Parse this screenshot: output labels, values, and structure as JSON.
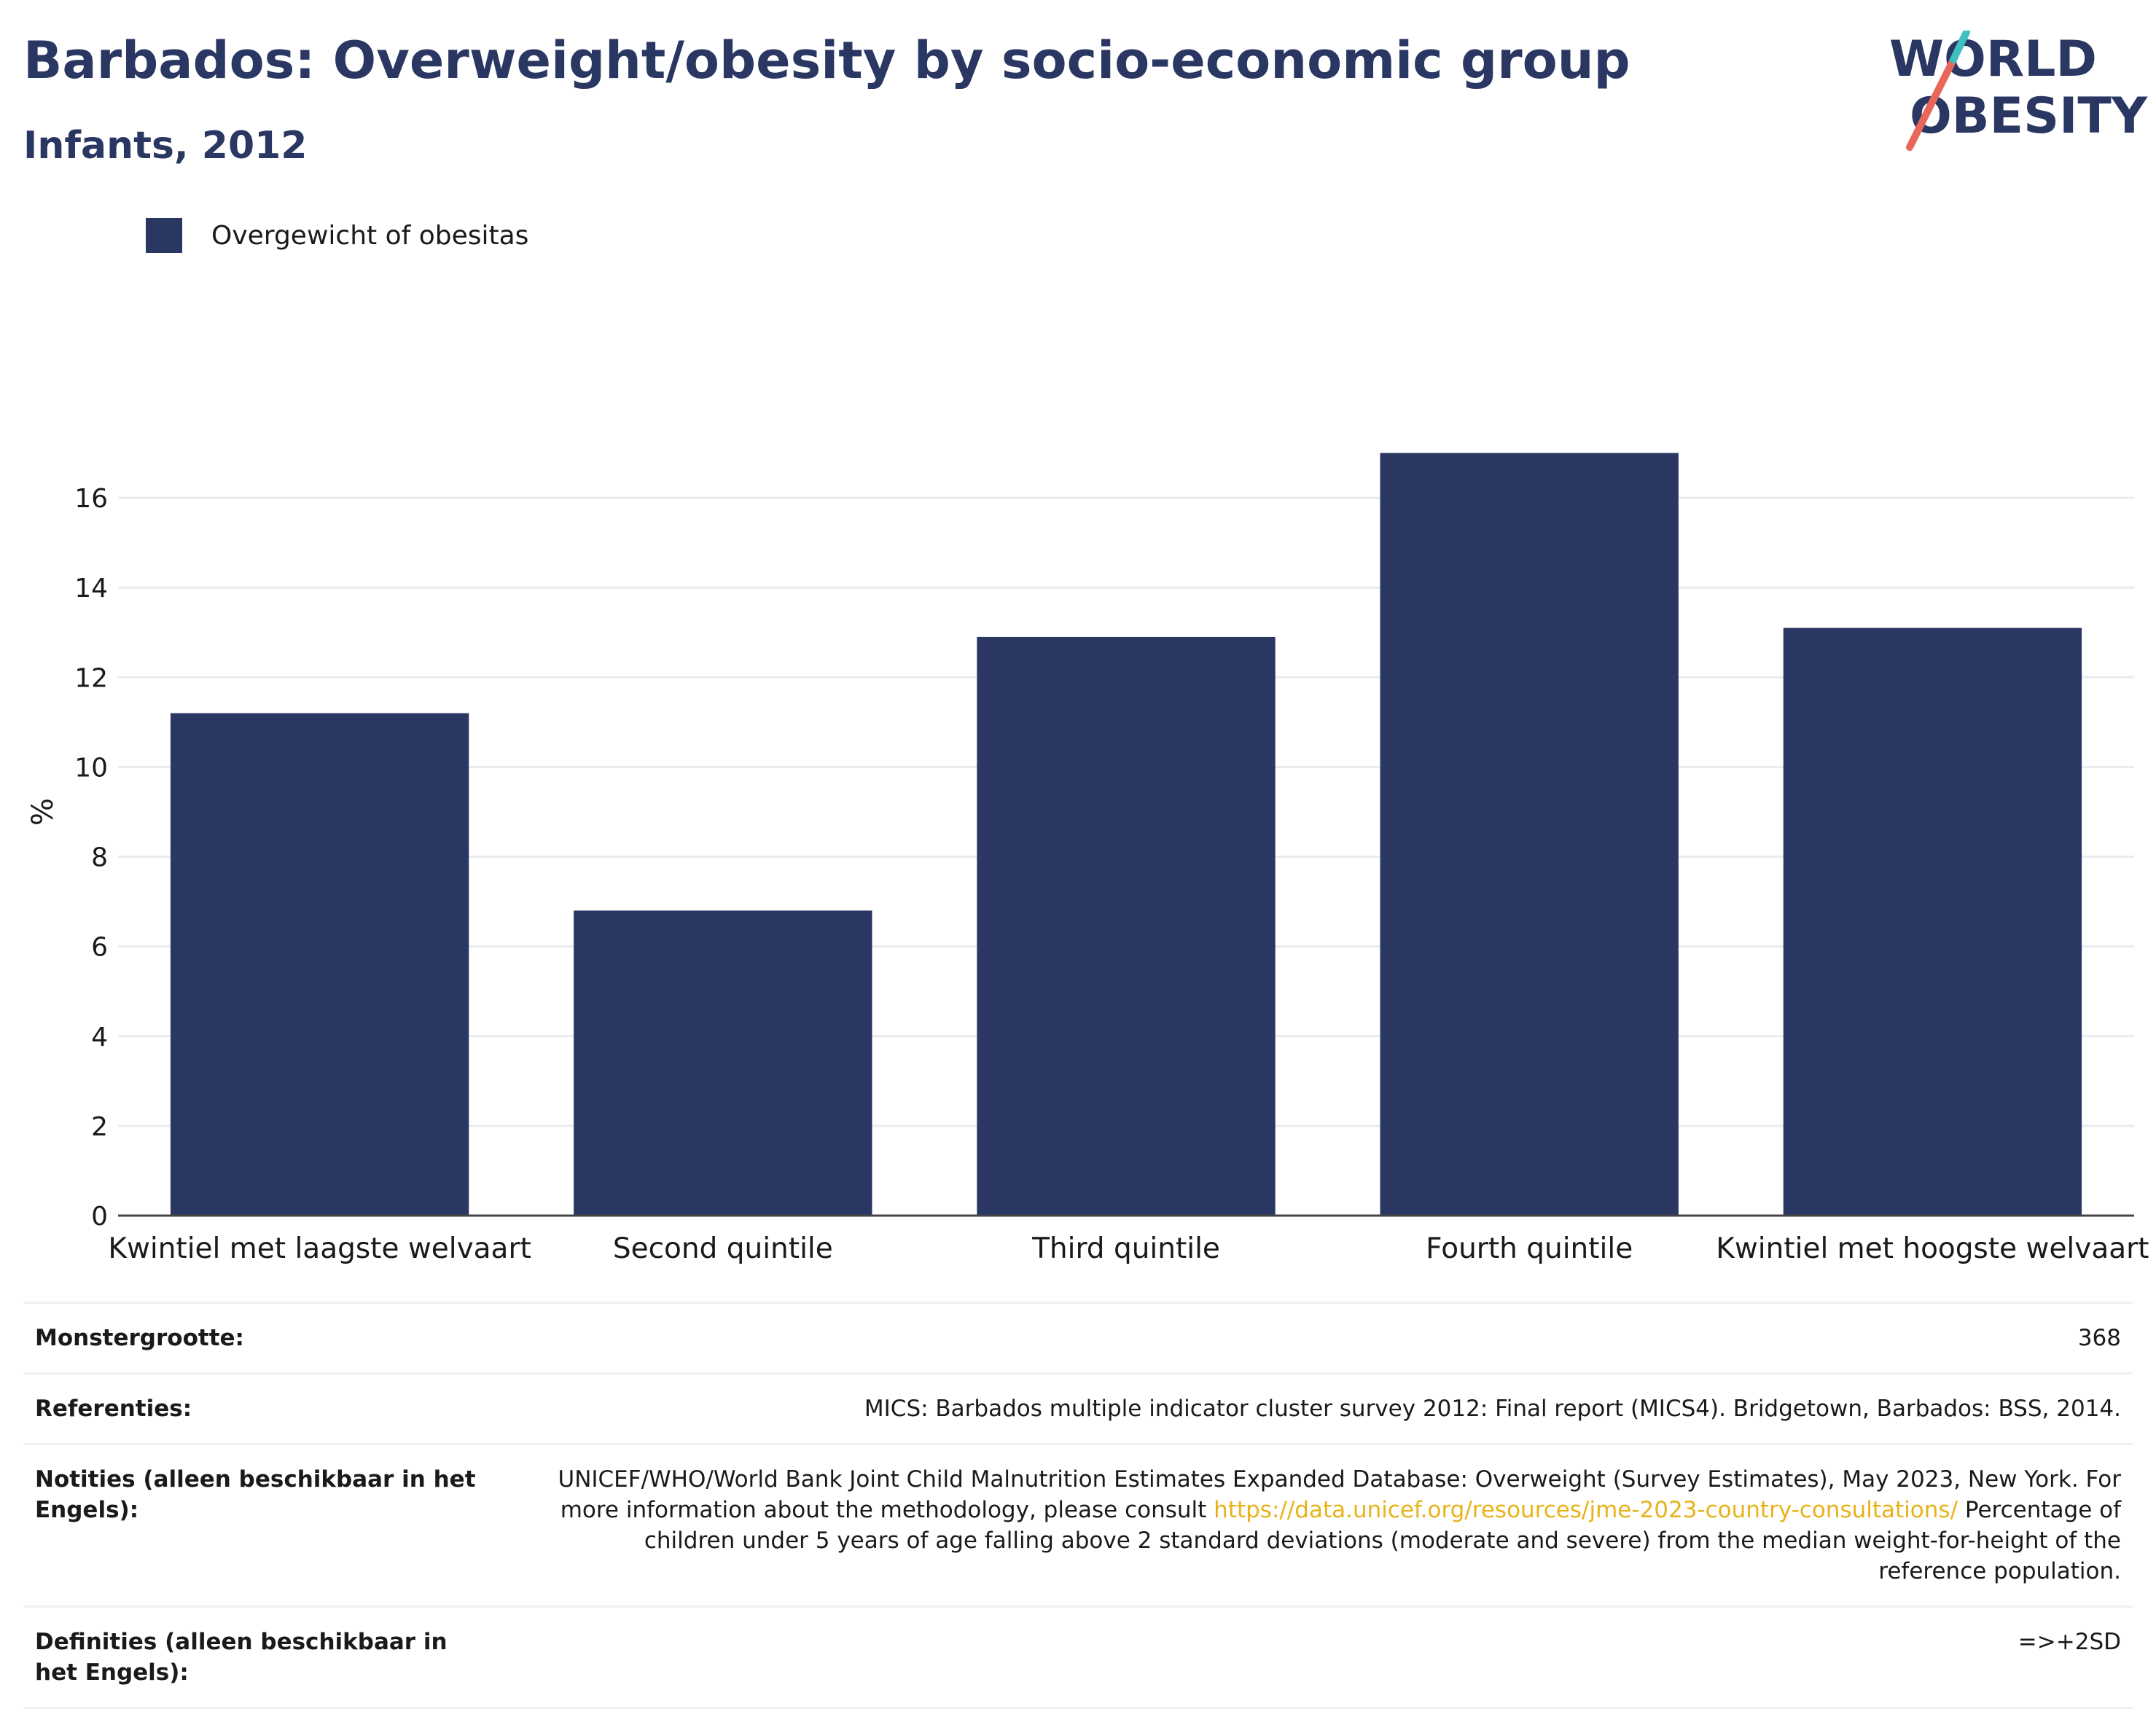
{
  "header": {
    "title": "Barbados: Overweight/obesity by socio-economic group",
    "subtitle": "Infants, 2012"
  },
  "logo": {
    "line1": "WORLD",
    "line2": "OBESITY",
    "slash_color": "#e8675a",
    "slash_accent": "#3fbfbf"
  },
  "legend": {
    "label": "Overgewicht of obesitas",
    "color": "#2b3763"
  },
  "chart_data": {
    "type": "bar",
    "categories": [
      "Kwintiel met laagste welvaart",
      "Second quintile",
      "Third quintile",
      "Fourth quintile",
      "Kwintiel met hoogste welvaart"
    ],
    "series": [
      {
        "name": "Overgewicht of obesitas",
        "values": [
          11.2,
          6.8,
          12.9,
          17.0,
          13.1
        ],
        "color": "#2b3763"
      }
    ],
    "ylabel": "%",
    "ylim": [
      0,
      18
    ],
    "yticks": [
      0,
      2,
      4,
      6,
      8,
      10,
      12,
      14,
      16
    ],
    "grid": true,
    "legend_position": "top-left"
  },
  "meta": {
    "sample_size": {
      "label": "Monstergrootte:",
      "value": "368"
    },
    "references": {
      "label": "Referenties:",
      "value": "MICS: Barbados multiple indicator cluster survey 2012: Final report (MICS4). Bridgetown, Barbados: BSS, 2014."
    },
    "notes": {
      "label": "Notities (alleen beschikbaar in het Engels):",
      "value_pre": "UNICEF/WHO/World Bank Joint Child Malnutrition Estimates Expanded Database: Overweight (Survey Estimates), May 2023, New York. For more information about the methodology, please consult ",
      "link": "https://data.unicef.org/resources/jme-2023-country-consultations/",
      "value_post": " Percentage of children under 5 years of age falling above 2 standard deviations (moderate and severe) from the median weight-for-height of the reference population."
    },
    "definitions": {
      "label": "Definities (alleen beschikbaar in het Engels):",
      "value": "=>+2SD"
    }
  }
}
